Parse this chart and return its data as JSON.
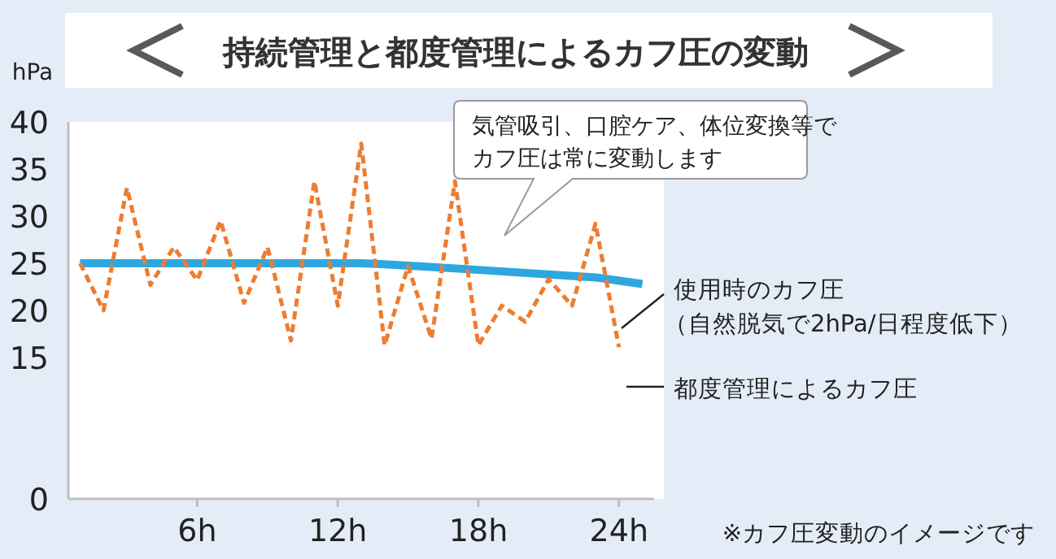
{
  "chart_data": {
    "type": "line",
    "title": "持続管理と都度管理によるカフ圧の変動",
    "ylabel": "hPa",
    "xlim": [
      0.5,
      25.5
    ],
    "xticks": [
      {
        "value": 6,
        "label": "6h"
      },
      {
        "value": 12,
        "label": "12h"
      },
      {
        "value": 18,
        "label": "18h"
      },
      {
        "value": 24,
        "label": "24h"
      }
    ],
    "ylim": [
      0,
      40
    ],
    "yticks": [
      0,
      15,
      20,
      25,
      30,
      35,
      40
    ],
    "series": [
      {
        "name": "使用時のカフ圧（自然脱気で2hPa/日程度低下）",
        "color": "#2ea7e0",
        "line_style": "solid",
        "x": [
          1,
          13,
          14,
          18,
          23,
          25
        ],
        "values": [
          25,
          25,
          24.9,
          24.3,
          23.5,
          22.8
        ]
      },
      {
        "name": "都度管理によるカフ圧",
        "color": "#ed7d31",
        "line_style": "dashed",
        "x": [
          1,
          2,
          3,
          4,
          5,
          6,
          7,
          8,
          9,
          10,
          11,
          12,
          13,
          14,
          15,
          16,
          17,
          18,
          19,
          20,
          21,
          22,
          23,
          24
        ],
        "values": [
          25,
          20,
          33,
          22.7,
          26.7,
          23.2,
          29.5,
          20.8,
          26.7,
          16.8,
          33.7,
          20.5,
          37.7,
          16.3,
          24.7,
          17,
          33.7,
          16.3,
          20.5,
          18.8,
          23.3,
          20.5,
          29.2,
          16.1
        ]
      }
    ],
    "annotations": [
      "気管吸引、口腔ケア、体位変換等でカフ圧は常に変動します",
      "※カフ圧変動のイメージです"
    ],
    "marker": "none",
    "grid": false,
    "legend": false
  }
}
